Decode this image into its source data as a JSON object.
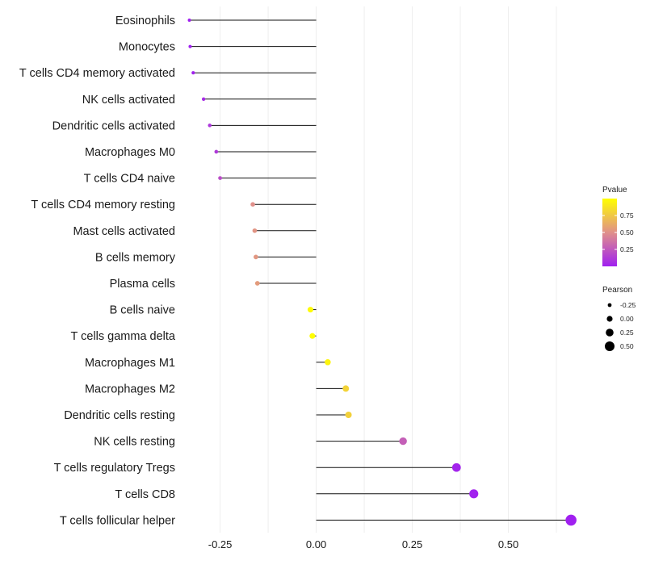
{
  "chart_data": {
    "type": "lollipop",
    "title": "",
    "xlabel": "",
    "ylabel": "",
    "xlim": [
      -0.35,
      0.69
    ],
    "xticks": [
      -0.25,
      0.0,
      0.25,
      0.5
    ],
    "xtick_labels": [
      "-0.25",
      "0.00",
      "0.25",
      "0.50"
    ],
    "grid": true,
    "categories": [
      "Eosinophils",
      "Monocytes",
      "T cells CD4 memory activated",
      "NK cells activated",
      "Dendritic cells activated",
      "Macrophages M0",
      "T cells CD4 naive",
      "T cells CD4 memory resting",
      "Mast cells activated",
      "B cells memory",
      "Plasma cells",
      "B cells naive",
      "T cells gamma delta",
      "Macrophages M1",
      "Macrophages M2",
      "Dendritic cells resting",
      "NK cells resting",
      "T cells regulatory  Tregs",
      "T cells CD8",
      "T cells follicular helper"
    ],
    "pearson": [
      -0.33,
      -0.328,
      -0.32,
      -0.293,
      -0.277,
      -0.26,
      -0.25,
      -0.165,
      -0.16,
      -0.157,
      -0.153,
      -0.015,
      -0.01,
      0.03,
      0.077,
      0.084,
      0.226,
      0.365,
      0.41,
      0.663
    ],
    "pvalue": [
      0.0,
      0.0,
      0.01,
      0.05,
      0.1,
      0.12,
      0.2,
      0.5,
      0.52,
      0.53,
      0.55,
      0.98,
      0.99,
      0.95,
      0.8,
      0.79,
      0.28,
      0.02,
      0.01,
      0.0
    ],
    "color_legend": {
      "title": "Pvalue",
      "ticks": [
        "0.25",
        "0.50",
        "0.75"
      ],
      "tick_values": [
        0.25,
        0.5,
        0.75
      ],
      "range": [
        0,
        1
      ],
      "low_color": "#a020f0",
      "mid_color": "#e0908a",
      "high_color": "#ffff00"
    },
    "size_legend": {
      "title": "Pearson",
      "entries": [
        "-0.25",
        "0.00",
        "0.25",
        "0.50"
      ],
      "values": [
        -0.25,
        0.0,
        0.25,
        0.5
      ]
    },
    "legend_position": "right"
  }
}
